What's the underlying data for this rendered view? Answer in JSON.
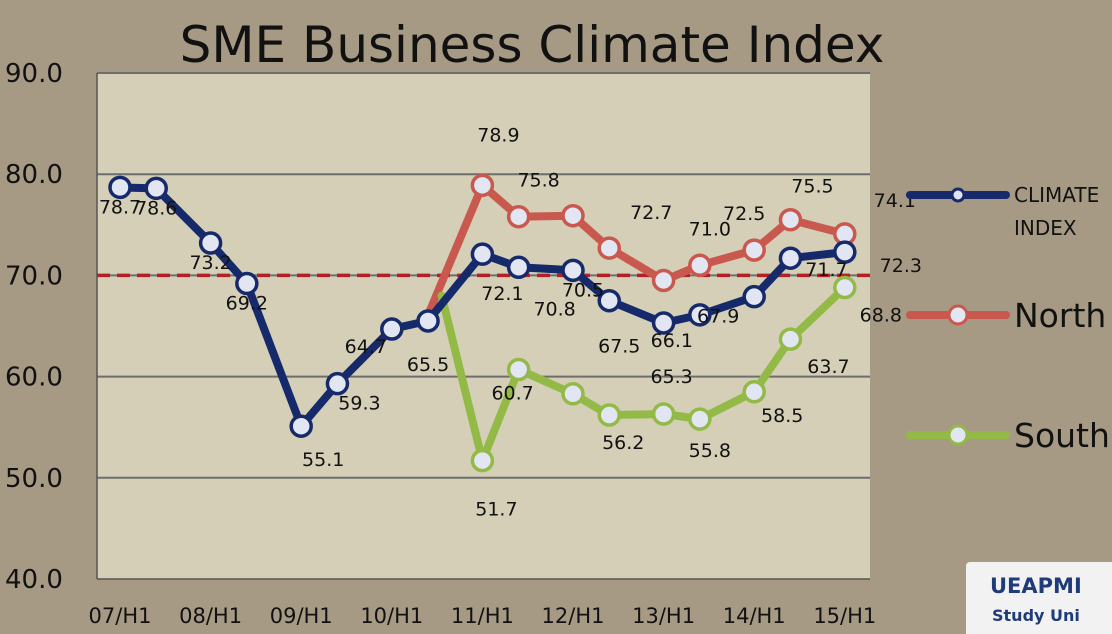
{
  "chart_data": {
    "type": "line",
    "title": "SME Business Climate Index",
    "ylim": [
      40,
      90
    ],
    "yticks": [
      "40.0",
      "50.0",
      "60.0",
      "70.0",
      "80.0",
      "90.0"
    ],
    "categories": [
      "07/H1",
      "08/H1",
      "09/H1",
      "10/H1",
      "11/H1",
      "12/H1",
      "13/H1",
      "14/H1",
      "15/H1"
    ],
    "reference_line": 70,
    "grid": true,
    "legend_position": "right",
    "series": [
      {
        "name": "CLIMATE INDEX",
        "color": "#162a6b",
        "x": [
          0,
          0.4,
          1,
          1.4,
          2,
          2.4,
          3,
          3.4,
          4,
          4.4,
          5,
          5.4,
          6,
          6.4,
          7,
          7.4,
          8
        ],
        "values": [
          78.7,
          78.6,
          73.2,
          69.2,
          55.1,
          59.3,
          64.7,
          65.5,
          72.1,
          70.8,
          70.5,
          67.5,
          65.3,
          66.1,
          67.9,
          71.7,
          72.3
        ],
        "labels": [
          "78.7",
          "78.6",
          "73.2",
          "69.2",
          "55.1",
          "59.3",
          "64.7",
          "65.5",
          "72.1",
          "70.8",
          "70.5",
          "67.5",
          "65.3",
          "66.1",
          "67.9",
          "71.7",
          "72.3"
        ]
      },
      {
        "name": "North",
        "color": "#c9584e",
        "x": [
          3.35,
          4,
          4.4,
          5,
          5.4,
          6,
          6.4,
          7,
          7.4,
          8
        ],
        "values": [
          65.0,
          78.9,
          75.8,
          75.9,
          72.7,
          69.5,
          71.0,
          72.5,
          75.5,
          74.1
        ],
        "labels": [
          "",
          "78.9",
          "75.8",
          "",
          "72.7",
          "",
          "71.0",
          "72.5",
          "75.5",
          "74.1"
        ]
      },
      {
        "name": "South",
        "color": "#93ba47",
        "x": [
          3.55,
          4,
          4.4,
          5,
          5.4,
          6,
          6.4,
          7,
          7.4,
          8
        ],
        "values": [
          68.0,
          51.7,
          60.7,
          58.3,
          56.2,
          56.3,
          55.8,
          58.5,
          63.7,
          68.8
        ],
        "labels": [
          "",
          "51.7",
          "60.7",
          "",
          "56.2",
          "",
          "55.8",
          "58.5",
          "63.7",
          "68.8"
        ]
      }
    ]
  },
  "logo": {
    "line1": "UEAPMI",
    "line2": "Study Uni"
  }
}
